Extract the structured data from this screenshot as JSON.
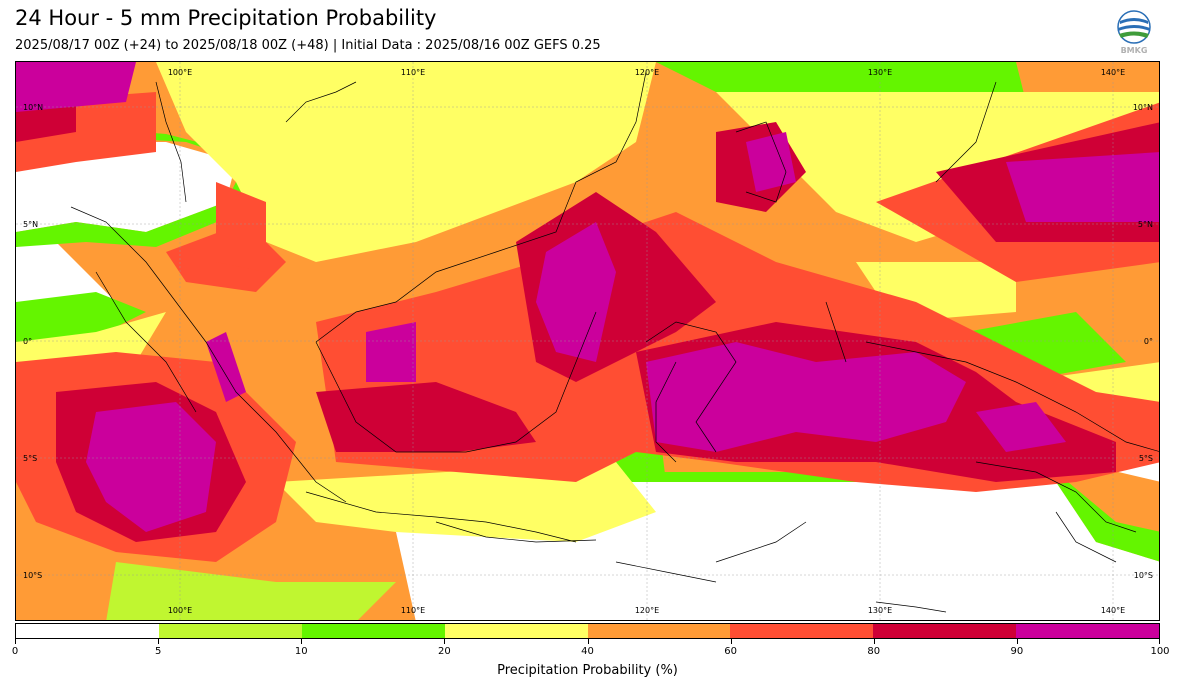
{
  "title": "24 Hour - 5 mm Precipitation Probability",
  "subtitle": "2025/08/17 00Z (+24) to 2025/08/18 00Z (+48) | Initial Data : 2025/08/16 00Z GEFS 0.25",
  "logo_icon": "bmkg-logo-icon",
  "logo_text": "BMKG",
  "map": {
    "lon_labels_top": [
      "100°E",
      "110°E",
      "120°E",
      "130°E",
      "140°E"
    ],
    "lon_labels_bottom": [
      "100°E",
      "110°E",
      "120°E",
      "130°E",
      "140°E"
    ],
    "lat_labels_left": [
      "10°N",
      "5°N",
      "0°",
      "5°S",
      "10°S"
    ],
    "lat_labels_right": [
      "10°N",
      "5°N",
      "0°",
      "5°S",
      "10°S"
    ]
  },
  "colorbar": {
    "label": "Precipitation Probability (%)",
    "ticks": [
      "0",
      "5",
      "10",
      "20",
      "40",
      "60",
      "80",
      "90",
      "100"
    ],
    "colors": [
      "#ffffff",
      "#c0f630",
      "#64f500",
      "#ffff64",
      "#ff9b36",
      "#ff4e33",
      "#cf0036",
      "#cb009c"
    ]
  }
}
